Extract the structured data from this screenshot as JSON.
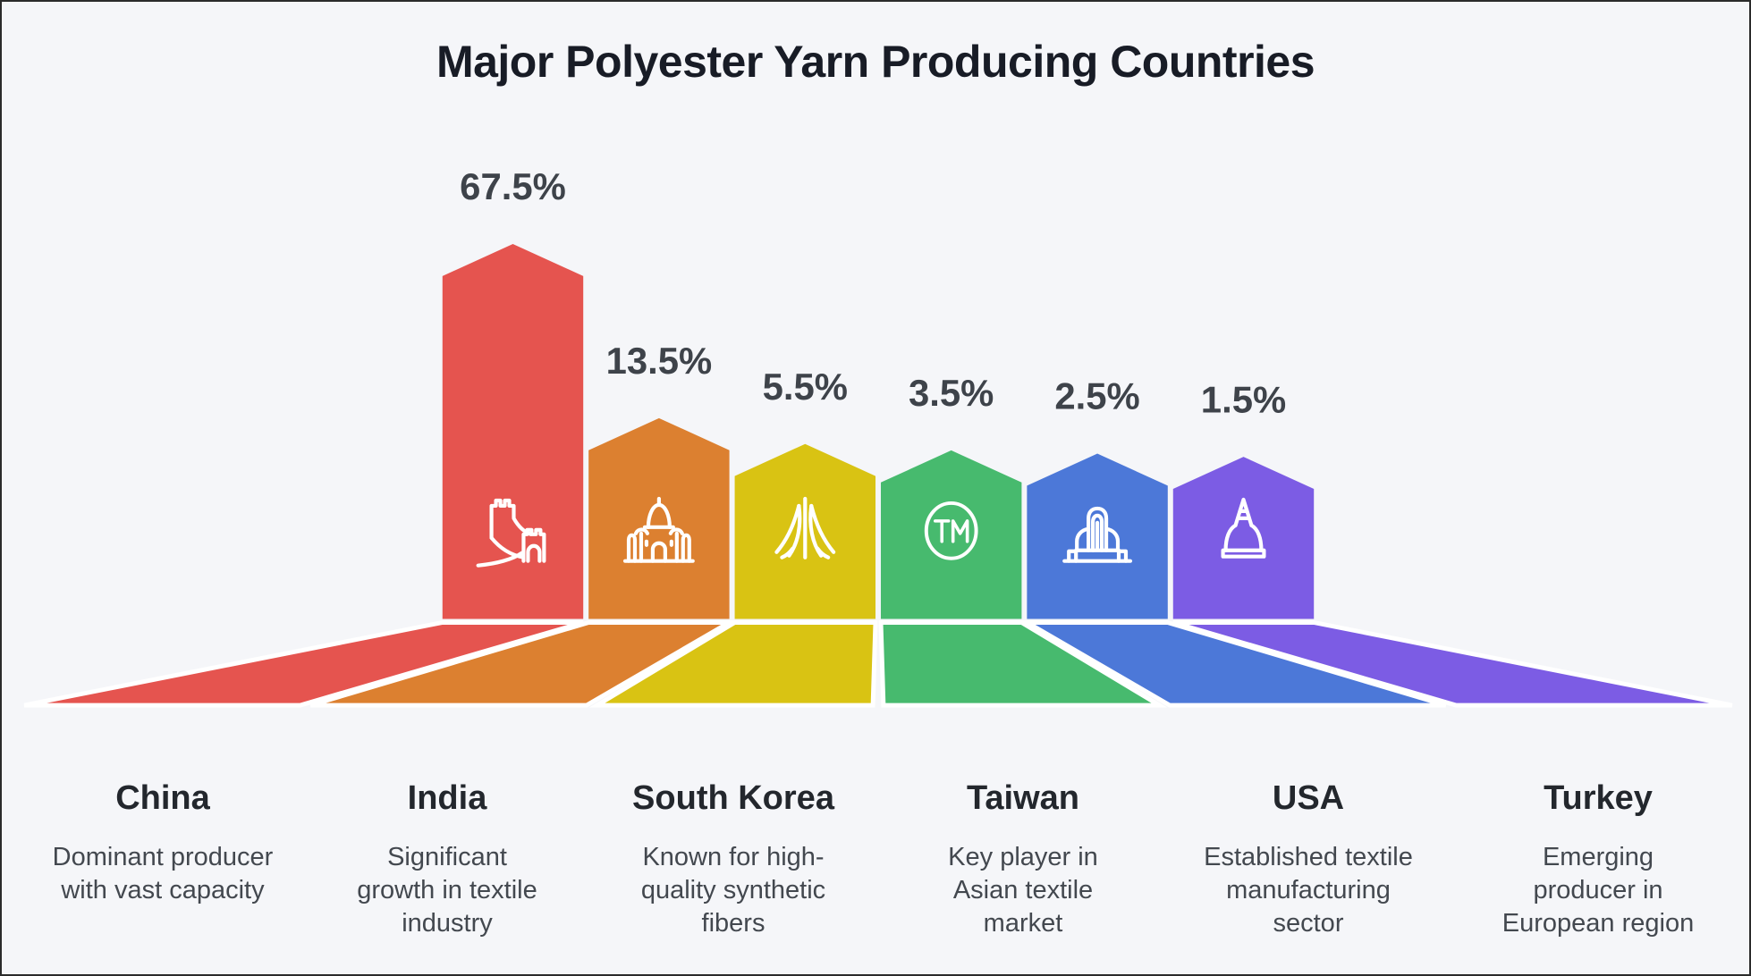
{
  "title": "Major Polyester Yarn Producing Countries",
  "palette": {
    "background": "#F5F6F9",
    "frame_border": "#2B2B2B",
    "title_text": "#181C26",
    "value_label_text": "#3E434A",
    "country_name_text": "#23272D",
    "description_text": "#43484F",
    "icon_stroke": "#FFFFFF"
  },
  "chart_data": {
    "type": "bar",
    "title": "Major Polyester Yarn Producing Countries",
    "unit": "%",
    "categories": [
      "China",
      "India",
      "South Korea",
      "Taiwan",
      "USA",
      "Turkey"
    ],
    "values": [
      67.5,
      13.5,
      5.5,
      3.5,
      2.5,
      1.5
    ],
    "value_labels": [
      "67.5%",
      "13.5%",
      "5.5%",
      "3.5%",
      "2.5%",
      "1.5%"
    ],
    "bar_colors": [
      "#E5544F",
      "#DC8030",
      "#D9C313",
      "#47BA6E",
      "#4C78D8",
      "#7C5CE4"
    ],
    "icon_names": [
      "great-wall-icon",
      "taj-mahal-icon",
      "yarn-strands-icon",
      "trademark-icon",
      "art-deco-building-icon",
      "dome-icon"
    ],
    "descriptions": [
      "Dominant producer\nwith vast capacity",
      "Significant\ngrowth in textile\nindustry",
      "Known for high-\nquality synthetic\nfibers",
      "Key player in\nAsian textile\nmarket",
      "Established textile\nmanufacturing\nsector",
      "Emerging\nproducer in\nEuropean region"
    ],
    "legend": "none",
    "grid": false,
    "style": "pentagon pictorial bars with white icons and perspective floor shadows fanning to a common baseline",
    "value_labels_position": "above bars"
  }
}
